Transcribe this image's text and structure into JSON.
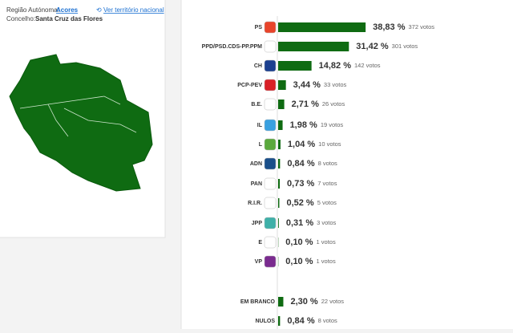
{
  "header": {
    "region_label": "Região Autónoma:",
    "region_link": "Acores",
    "national_link": "Ver território nacional",
    "municipality_label": "Concelho:",
    "municipality": "Santa Cruz das Flores"
  },
  "chart_data": {
    "type": "bar",
    "orientation": "horizontal",
    "color": "#0f6b12",
    "categories": [
      "PS",
      "PPD/PSD.CDS-PP.PPM",
      "CH",
      "PCP-PEV",
      "B.E.",
      "IL",
      "L",
      "ADN",
      "PAN",
      "R.I.R.",
      "JPP",
      "E",
      "VP",
      "EM BRANCO",
      "NULOS"
    ],
    "values": [
      38.83,
      31.42,
      14.82,
      3.44,
      2.71,
      1.98,
      1.04,
      0.84,
      0.73,
      0.52,
      0.31,
      0.1,
      0.1,
      2.3,
      0.84
    ],
    "value_labels": [
      "38,83 %",
      "31,42 %",
      "14,82 %",
      "3,44 %",
      "2,71 %",
      "1,98 %",
      "1,04 %",
      "0,84 %",
      "0,73 %",
      "0,52 %",
      "0,31 %",
      "0,10 %",
      "0,10 %",
      "2,30 %",
      "0,84 %"
    ],
    "vote_labels": [
      "372 votos",
      "301 votos",
      "142 votos",
      "33 votos",
      "26 votos",
      "19 votos",
      "10 votos",
      "8 votos",
      "7 votos",
      "5 votos",
      "3 votos",
      "1 votos",
      "1 votos",
      "22 votos",
      "8 votos"
    ]
  }
}
